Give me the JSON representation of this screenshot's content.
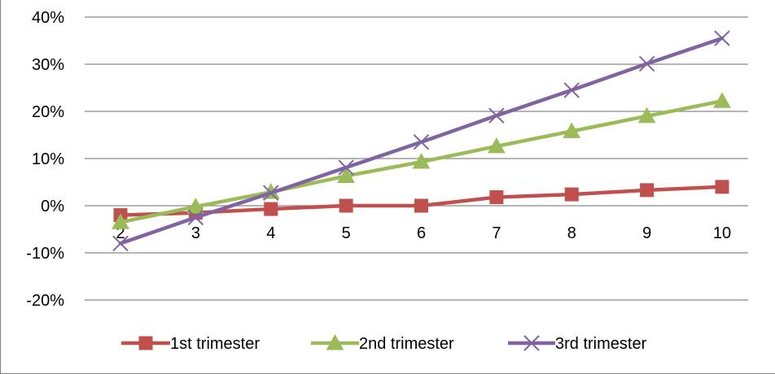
{
  "chart_data": {
    "type": "line",
    "title": "",
    "xlabel": "",
    "ylabel": "",
    "x": [
      2,
      3,
      4,
      5,
      6,
      7,
      8,
      9,
      10
    ],
    "x_tick_labels": [
      "2",
      "3",
      "4",
      "5",
      "6",
      "7",
      "8",
      "9",
      "10"
    ],
    "ylim": [
      -20,
      40
    ],
    "y_ticks": [
      40,
      30,
      20,
      10,
      0,
      -10,
      -20
    ],
    "y_tick_labels": [
      "40%",
      "30%",
      "20%",
      "10%",
      "0%",
      "-10%",
      "-20%"
    ],
    "y_unit": "percent",
    "grid": "horizontal",
    "legend_position": "bottom",
    "series": [
      {
        "name": "1st trimester",
        "color": "#c0504d",
        "marker": "square",
        "values": [
          -2.0,
          -1.5,
          -0.7,
          0.0,
          0.0,
          1.8,
          2.4,
          3.3,
          4.0
        ]
      },
      {
        "name": "2nd trimester",
        "color": "#9bbb59",
        "marker": "triangle",
        "values": [
          -3.5,
          -0.2,
          2.9,
          6.3,
          9.3,
          12.6,
          15.8,
          19.0,
          22.2
        ]
      },
      {
        "name": "3rd trimester",
        "color": "#8064a2",
        "marker": "x",
        "values": [
          -8.0,
          -2.5,
          2.7,
          8.1,
          13.5,
          19.1,
          24.5,
          30.1,
          35.5
        ]
      }
    ]
  }
}
